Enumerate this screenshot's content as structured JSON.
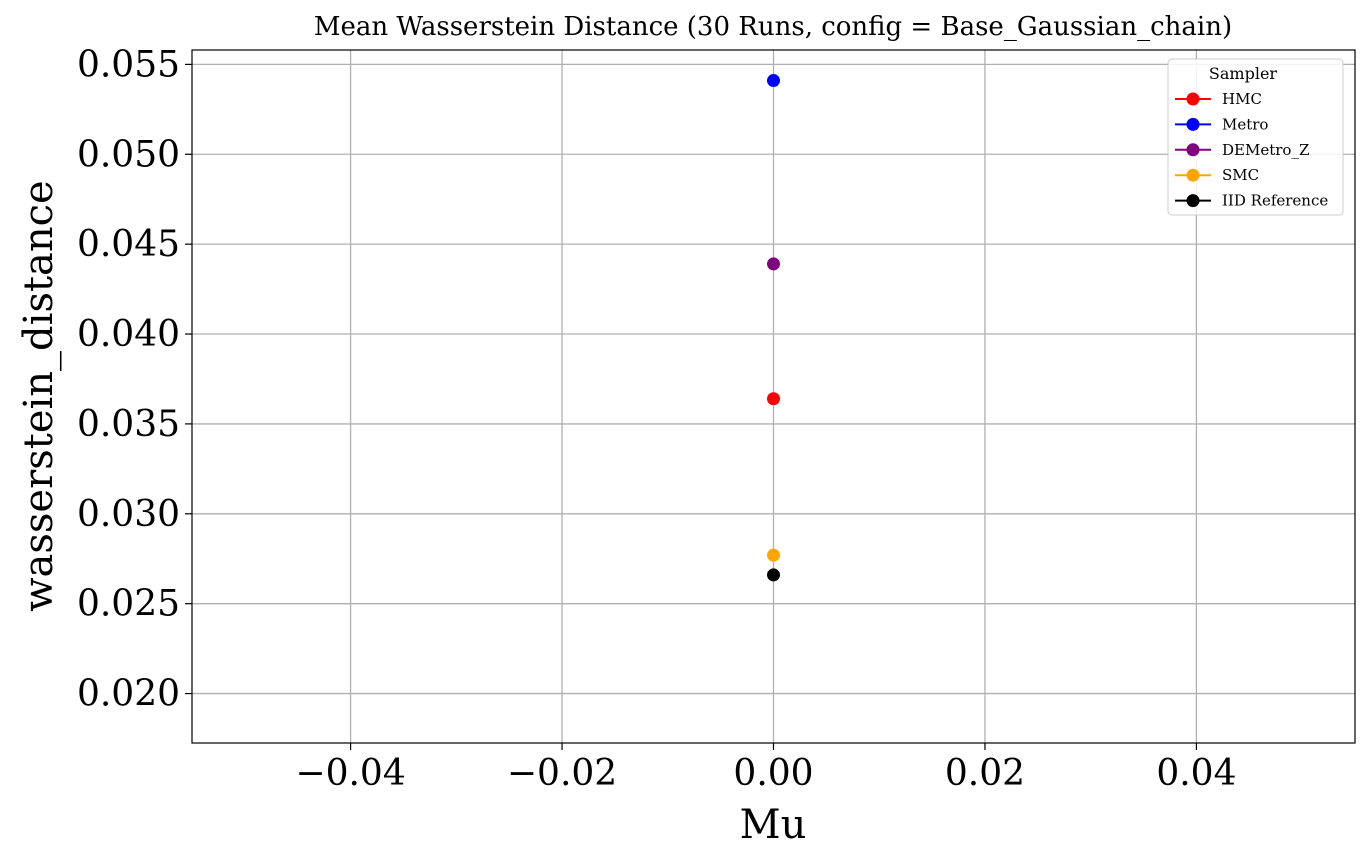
{
  "chart_data": {
    "type": "scatter",
    "title": "Mean Wasserstein Distance (30 Runs, config = Base_Gaussian_chain)",
    "xlabel": "Mu",
    "ylabel": "wasserstein_distance",
    "xlim": [
      -0.055,
      0.055
    ],
    "ylim": [
      0.01725,
      0.0558
    ],
    "xticks": [
      -0.04,
      -0.02,
      0.0,
      0.02,
      0.04
    ],
    "xtick_labels": [
      "−0.04",
      "−0.02",
      "0.00",
      "0.02",
      "0.04"
    ],
    "yticks": [
      0.02,
      0.025,
      0.03,
      0.035,
      0.04,
      0.045,
      0.05,
      0.055
    ],
    "ytick_labels": [
      "0.020",
      "0.025",
      "0.030",
      "0.035",
      "0.040",
      "0.045",
      "0.050",
      "0.055"
    ],
    "grid": true,
    "legend": {
      "title": "Sampler",
      "placement": "top-right"
    },
    "series": [
      {
        "name": "HMC",
        "color": "#ff0000",
        "x": [
          0.0
        ],
        "y": [
          0.0364
        ]
      },
      {
        "name": "Metro",
        "color": "#0000ff",
        "x": [
          0.0
        ],
        "y": [
          0.0541
        ]
      },
      {
        "name": "DEMetro_Z",
        "color": "#800080",
        "x": [
          0.0
        ],
        "y": [
          0.0439
        ]
      },
      {
        "name": "SMC",
        "color": "#ffa500",
        "x": [
          0.0
        ],
        "y": [
          0.0277
        ]
      },
      {
        "name": "IID Reference",
        "color": "#000000",
        "x": [
          0.0
        ],
        "y": [
          0.0266
        ]
      }
    ]
  }
}
